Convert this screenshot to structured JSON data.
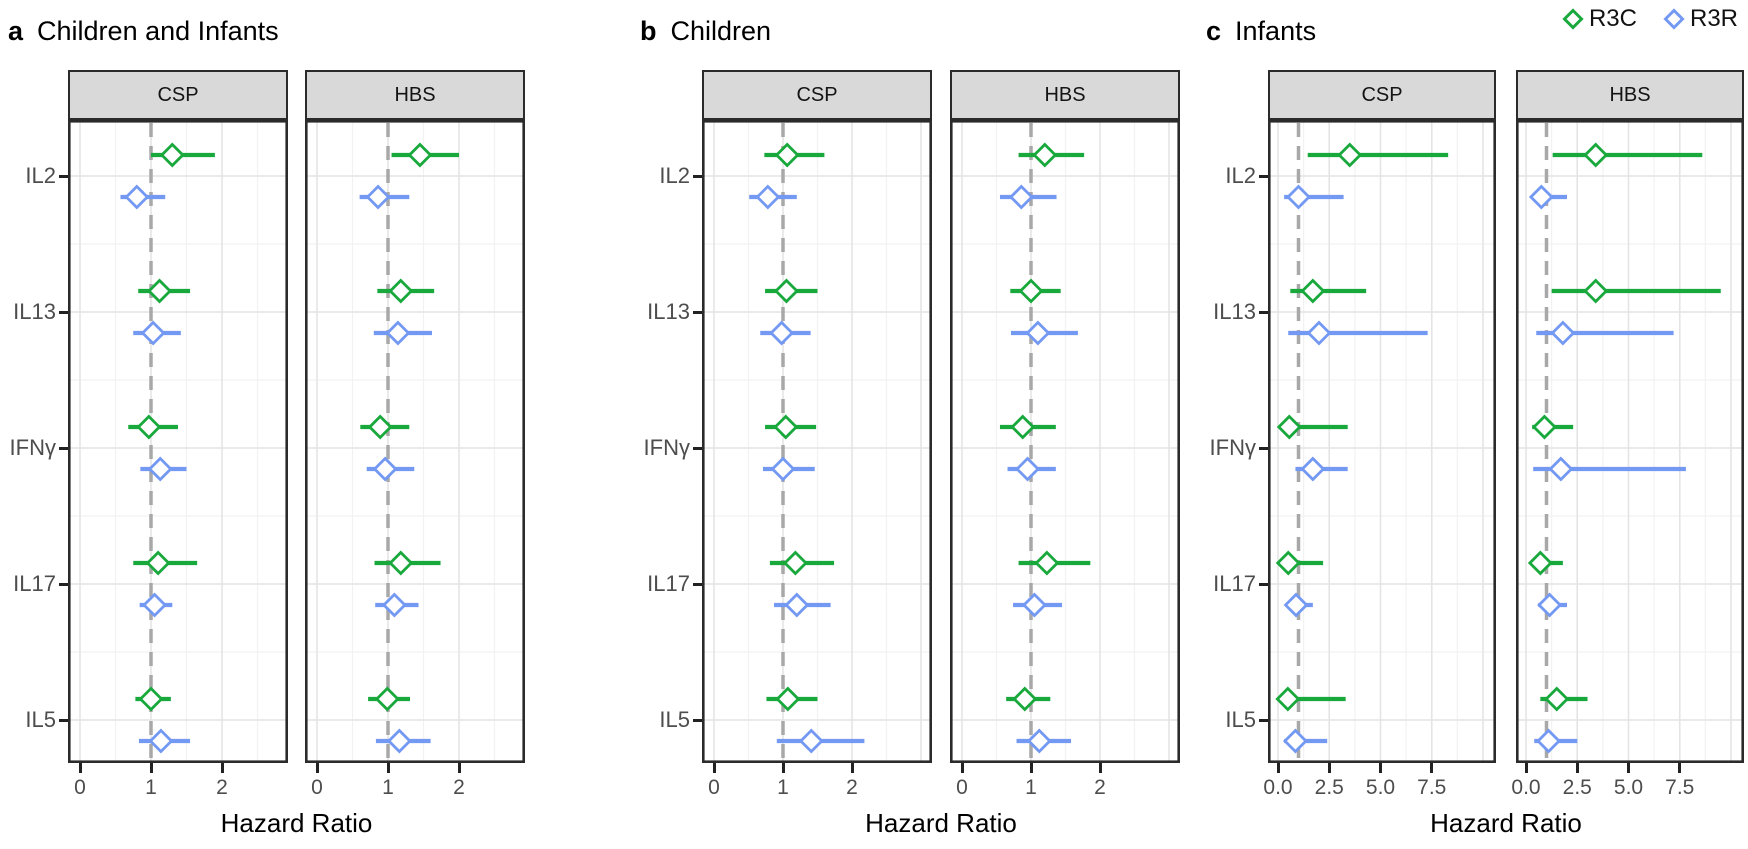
{
  "legend": {
    "items": [
      {
        "label": "R3C",
        "color": "#19A83C"
      },
      {
        "label": "R3R",
        "color": "#7499F3"
      }
    ]
  },
  "chart_data": {
    "type": "forest",
    "xlabel": "Hazard Ratio",
    "reference_line": 1,
    "groups": [
      "R3C",
      "R3R"
    ],
    "group_colors": {
      "R3C": "#19A83C",
      "R3R": "#7499F3"
    },
    "cytokines": [
      "IL2",
      "IL13",
      "IFNγ",
      "IL17",
      "IL5"
    ],
    "facet_names": [
      "CSP",
      "HBS"
    ],
    "panels": [
      {
        "letter": "a",
        "title": "Children and Infants",
        "x_ticks": [
          "0",
          "1",
          "2"
        ],
        "x_tick_values": [
          0,
          1,
          2
        ],
        "x_range": [
          0,
          2.9
        ],
        "facets": [
          {
            "name": "CSP",
            "rows": [
              {
                "cytokine": "IL2",
                "R3C": {
                  "hr": 1.3,
                  "lo": 1.0,
                  "hi": 1.9
                },
                "R3R": {
                  "hr": 0.8,
                  "lo": 0.57,
                  "hi": 1.2
                }
              },
              {
                "cytokine": "IL13",
                "R3C": {
                  "hr": 1.12,
                  "lo": 0.82,
                  "hi": 1.55
                },
                "R3R": {
                  "hr": 1.03,
                  "lo": 0.75,
                  "hi": 1.42
                }
              },
              {
                "cytokine": "IFNγ",
                "R3C": {
                  "hr": 0.97,
                  "lo": 0.68,
                  "hi": 1.38
                },
                "R3R": {
                  "hr": 1.13,
                  "lo": 0.85,
                  "hi": 1.5
                }
              },
              {
                "cytokine": "IL17",
                "R3C": {
                  "hr": 1.1,
                  "lo": 0.75,
                  "hi": 1.65
                },
                "R3R": {
                  "hr": 1.05,
                  "lo": 0.84,
                  "hi": 1.3
                }
              },
              {
                "cytokine": "IL5",
                "R3C": {
                  "hr": 1.0,
                  "lo": 0.78,
                  "hi": 1.28
                },
                "R3R": {
                  "hr": 1.14,
                  "lo": 0.83,
                  "hi": 1.55
                }
              }
            ]
          },
          {
            "name": "HBS",
            "rows": [
              {
                "cytokine": "IL2",
                "R3C": {
                  "hr": 1.45,
                  "lo": 1.05,
                  "hi": 2.0
                },
                "R3R": {
                  "hr": 0.86,
                  "lo": 0.6,
                  "hi": 1.3
                }
              },
              {
                "cytokine": "IL13",
                "R3C": {
                  "hr": 1.18,
                  "lo": 0.85,
                  "hi": 1.65
                },
                "R3R": {
                  "hr": 1.14,
                  "lo": 0.8,
                  "hi": 1.62
                }
              },
              {
                "cytokine": "IFNγ",
                "R3C": {
                  "hr": 0.89,
                  "lo": 0.61,
                  "hi": 1.3
                },
                "R3R": {
                  "hr": 0.96,
                  "lo": 0.7,
                  "hi": 1.37
                }
              },
              {
                "cytokine": "IL17",
                "R3C": {
                  "hr": 1.18,
                  "lo": 0.81,
                  "hi": 1.74
                },
                "R3R": {
                  "hr": 1.09,
                  "lo": 0.82,
                  "hi": 1.43
                }
              },
              {
                "cytokine": "IL5",
                "R3C": {
                  "hr": 0.99,
                  "lo": 0.72,
                  "hi": 1.31
                },
                "R3R": {
                  "hr": 1.16,
                  "lo": 0.83,
                  "hi": 1.6
                }
              }
            ]
          }
        ]
      },
      {
        "letter": "b",
        "title": "Children",
        "x_ticks": [
          "0",
          "1",
          "2"
        ],
        "x_tick_values": [
          0,
          1,
          2
        ],
        "x_range": [
          0,
          2.9
        ],
        "facets": [
          {
            "name": "CSP",
            "rows": [
              {
                "cytokine": "IL2",
                "R3C": {
                  "hr": 1.06,
                  "lo": 0.73,
                  "hi": 1.6
                },
                "R3R": {
                  "hr": 0.78,
                  "lo": 0.51,
                  "hi": 1.2
                }
              },
              {
                "cytokine": "IL13",
                "R3C": {
                  "hr": 1.05,
                  "lo": 0.74,
                  "hi": 1.5
                },
                "R3R": {
                  "hr": 0.98,
                  "lo": 0.67,
                  "hi": 1.4
                }
              },
              {
                "cytokine": "IFNγ",
                "R3C": {
                  "hr": 1.04,
                  "lo": 0.74,
                  "hi": 1.48
                },
                "R3R": {
                  "hr": 1.0,
                  "lo": 0.71,
                  "hi": 1.46
                }
              },
              {
                "cytokine": "IL17",
                "R3C": {
                  "hr": 1.18,
                  "lo": 0.81,
                  "hi": 1.74
                },
                "R3R": {
                  "hr": 1.2,
                  "lo": 0.87,
                  "hi": 1.69
                }
              },
              {
                "cytokine": "IL5",
                "R3C": {
                  "hr": 1.07,
                  "lo": 0.76,
                  "hi": 1.5
                },
                "R3R": {
                  "hr": 1.41,
                  "lo": 0.91,
                  "hi": 2.18
                }
              }
            ]
          },
          {
            "name": "HBS",
            "rows": [
              {
                "cytokine": "IL2",
                "R3C": {
                  "hr": 1.2,
                  "lo": 0.82,
                  "hi": 1.77
                },
                "R3R": {
                  "hr": 0.86,
                  "lo": 0.55,
                  "hi": 1.37
                }
              },
              {
                "cytokine": "IL13",
                "R3C": {
                  "hr": 1.0,
                  "lo": 0.7,
                  "hi": 1.43
                },
                "R3R": {
                  "hr": 1.1,
                  "lo": 0.71,
                  "hi": 1.68
                }
              },
              {
                "cytokine": "IFNγ",
                "R3C": {
                  "hr": 0.88,
                  "lo": 0.55,
                  "hi": 1.36
                },
                "R3R": {
                  "hr": 0.95,
                  "lo": 0.66,
                  "hi": 1.36
                }
              },
              {
                "cytokine": "IL17",
                "R3C": {
                  "hr": 1.23,
                  "lo": 0.82,
                  "hi": 1.86
                },
                "R3R": {
                  "hr": 1.05,
                  "lo": 0.74,
                  "hi": 1.45
                }
              },
              {
                "cytokine": "IL5",
                "R3C": {
                  "hr": 0.91,
                  "lo": 0.64,
                  "hi": 1.28
                },
                "R3R": {
                  "hr": 1.12,
                  "lo": 0.79,
                  "hi": 1.58
                }
              }
            ]
          }
        ]
      },
      {
        "letter": "c",
        "title": "Infants",
        "x_ticks": [
          "0.0",
          "2.5",
          "5.0",
          "7.5"
        ],
        "x_tick_values": [
          0,
          2.5,
          5,
          7.5
        ],
        "x_range": [
          0,
          10.5
        ],
        "facets": [
          {
            "name": "CSP",
            "rows": [
              {
                "cytokine": "IL2",
                "R3C": {
                  "hr": 3.5,
                  "lo": 1.45,
                  "hi": 8.3
                },
                "R3R": {
                  "hr": 1.0,
                  "lo": 0.3,
                  "hi": 3.2
                }
              },
              {
                "cytokine": "IL13",
                "R3C": {
                  "hr": 1.7,
                  "lo": 0.6,
                  "hi": 4.3
                },
                "R3R": {
                  "hr": 2.0,
                  "lo": 0.5,
                  "hi": 7.3
                }
              },
              {
                "cytokine": "IFNγ",
                "R3C": {
                  "hr": 0.55,
                  "lo": 0.1,
                  "hi": 3.4
                },
                "R3R": {
                  "hr": 1.7,
                  "lo": 0.85,
                  "hi": 3.4
                }
              },
              {
                "cytokine": "IL17",
                "R3C": {
                  "hr": 0.5,
                  "lo": 0.1,
                  "hi": 2.2
                },
                "R3R": {
                  "hr": 0.88,
                  "lo": 0.45,
                  "hi": 1.7
                }
              },
              {
                "cytokine": "IL5",
                "R3C": {
                  "hr": 0.48,
                  "lo": 0.1,
                  "hi": 3.3
                },
                "R3R": {
                  "hr": 0.85,
                  "lo": 0.3,
                  "hi": 2.4
                }
              }
            ]
          },
          {
            "name": "HBS",
            "rows": [
              {
                "cytokine": "IL2",
                "R3C": {
                  "hr": 3.4,
                  "lo": 1.3,
                  "hi": 8.6
                },
                "R3R": {
                  "hr": 0.75,
                  "lo": 0.3,
                  "hi": 2.0
                }
              },
              {
                "cytokine": "IL13",
                "R3C": {
                  "hr": 3.4,
                  "lo": 1.25,
                  "hi": 9.5
                },
                "R3R": {
                  "hr": 1.8,
                  "lo": 0.5,
                  "hi": 7.2
                }
              },
              {
                "cytokine": "IFNγ",
                "R3C": {
                  "hr": 0.9,
                  "lo": 0.3,
                  "hi": 2.3
                },
                "R3R": {
                  "hr": 1.7,
                  "lo": 0.35,
                  "hi": 7.8
                }
              },
              {
                "cytokine": "IL17",
                "R3C": {
                  "hr": 0.7,
                  "lo": 0.2,
                  "hi": 1.8
                },
                "R3R": {
                  "hr": 1.15,
                  "lo": 0.6,
                  "hi": 2.0
                }
              },
              {
                "cytokine": "IL5",
                "R3C": {
                  "hr": 1.5,
                  "lo": 0.7,
                  "hi": 3.0
                },
                "R3R": {
                  "hr": 1.1,
                  "lo": 0.4,
                  "hi": 2.5
                }
              }
            ]
          }
        ]
      }
    ]
  }
}
